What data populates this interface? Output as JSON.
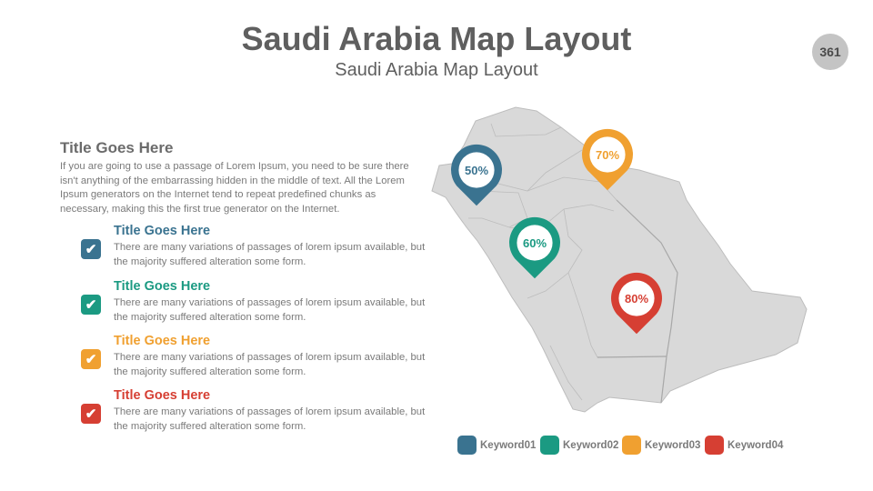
{
  "header": {
    "title": "Saudi Arabia Map Layout",
    "subtitle": "Saudi Arabia Map Layout",
    "page_number": "361"
  },
  "intro": {
    "title": "Title Goes Here",
    "text": " If you are going to use a passage of Lorem Ipsum, you need to be sure there isn't anything  of the embarrassing hidden in the middle of text. All the Lorem Ipsum generators on the Internet tend to repeat predefined chunks as necessary, making this the first true generator on the Internet."
  },
  "items": [
    {
      "title": "Title Goes Here",
      "text": "There are many variations of passages of lorem ipsum available, but the majority suffered alteration some form.",
      "color": "#3a7390",
      "icon": "check-icon"
    },
    {
      "title": "Title Goes Here",
      "text": "There are many variations of passages of lorem ipsum available, but the majority suffered alteration some form.",
      "color": "#1b9a82",
      "icon": "check-icon"
    },
    {
      "title": "Title Goes Here",
      "text": "There are many variations of passages of lorem ipsum available, but the majority suffered alteration some form.",
      "color": "#f0a030",
      "icon": "check-icon"
    },
    {
      "title": "Title Goes Here",
      "text": "There are many variations of passages of lorem ipsum available, but the majority suffered alteration some form.",
      "color": "#d63f33",
      "icon": "check-icon"
    }
  ],
  "map": {
    "fill": "#d9d9d9",
    "pins": [
      {
        "label": "50%",
        "color": "#3a7390"
      },
      {
        "label": "70%",
        "color": "#f0a030"
      },
      {
        "label": "60%",
        "color": "#1b9a82"
      },
      {
        "label": "80%",
        "color": "#d63f33"
      }
    ]
  },
  "legend": [
    {
      "label": "Keyword01",
      "color": "#3a7390"
    },
    {
      "label": "Keyword02",
      "color": "#1b9a82"
    },
    {
      "label": "Keyword03",
      "color": "#f0a030"
    },
    {
      "label": "Keyword04",
      "color": "#d63f33"
    }
  ]
}
